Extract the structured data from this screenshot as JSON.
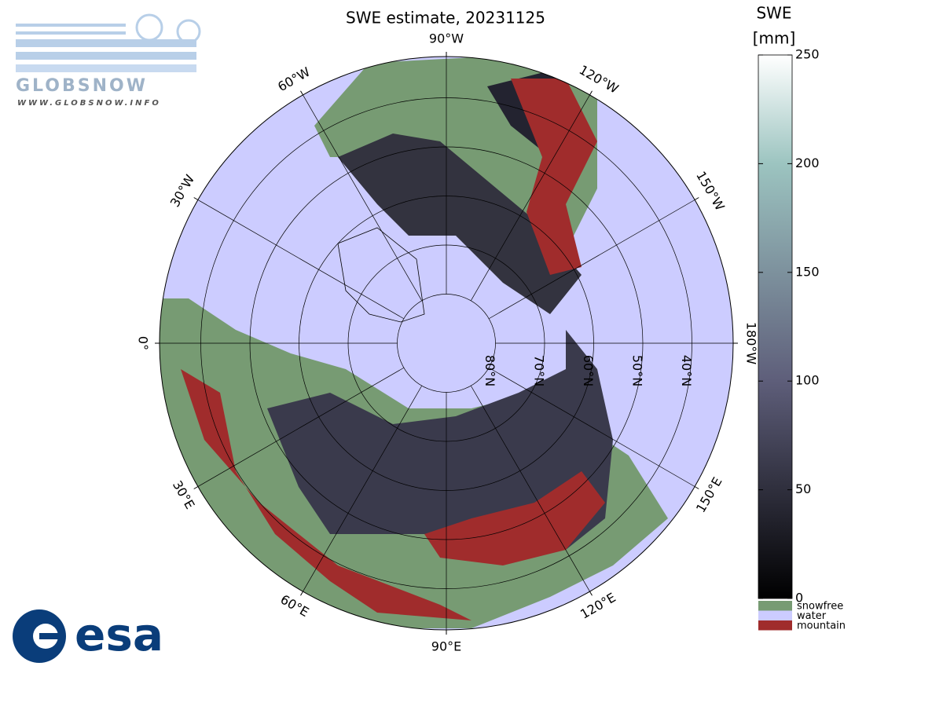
{
  "title": "SWE estimate, 20231125",
  "logo_top": {
    "name": "GLOBSNOW",
    "url": "WWW.GLOBSNOW.INFO"
  },
  "logo_bottom": "esa",
  "map": {
    "meridians": [
      {
        "lon": -90,
        "label": "90°W"
      },
      {
        "lon": -120,
        "label": "120°W"
      },
      {
        "lon": -150,
        "label": "150°W"
      },
      {
        "lon": 180,
        "label": "180°W"
      },
      {
        "lon": 150,
        "label": "150°E"
      },
      {
        "lon": 120,
        "label": "120°E"
      },
      {
        "lon": 90,
        "label": "90°E"
      },
      {
        "lon": 60,
        "label": "60°E"
      },
      {
        "lon": 30,
        "label": "30°E"
      },
      {
        "lon": 0,
        "label": "0°"
      },
      {
        "lon": -30,
        "label": "30°W"
      },
      {
        "lon": -60,
        "label": "60°W"
      }
    ],
    "parallels": [
      {
        "lat": 80,
        "label": "80°N"
      },
      {
        "lat": 70,
        "label": "70°N"
      },
      {
        "lat": 60,
        "label": "60°N"
      },
      {
        "lat": 50,
        "label": "50°N"
      },
      {
        "lat": 40,
        "label": "40°N"
      }
    ]
  },
  "colorbar": {
    "label": [
      "SWE",
      "[mm]"
    ],
    "lim": [
      0,
      250
    ],
    "ticks": [
      0,
      50,
      100,
      150,
      200,
      250
    ],
    "stops": [
      {
        "value": 0,
        "color": "#000000"
      },
      {
        "value": 100,
        "color": "#5e5e7a"
      },
      {
        "value": 200,
        "color": "#9cc4c0"
      },
      {
        "value": 250,
        "color": "#ffffff"
      }
    ]
  },
  "legend": [
    {
      "name": "snowfree",
      "color": "#779b73"
    },
    {
      "name": "water",
      "color": "#ccccff"
    },
    {
      "name": "mountain",
      "color": "#a02c2c"
    }
  ]
}
